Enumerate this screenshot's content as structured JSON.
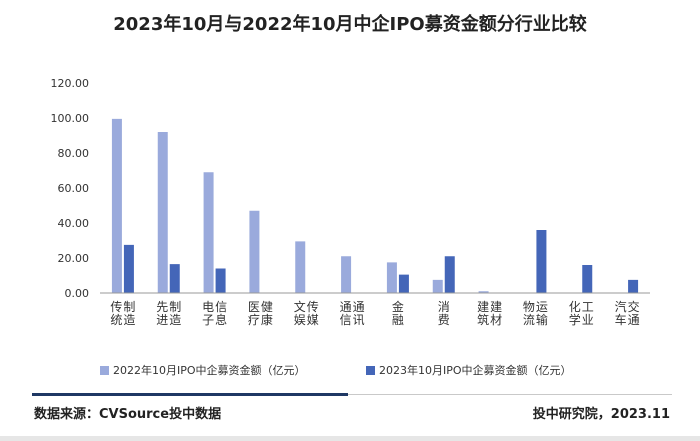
{
  "title": "2023年10月与2022年10月中企IPO募资金额分行业比较",
  "chart_data": {
    "type": "bar",
    "categories": [
      "传统制造",
      "先进制造",
      "电子信息",
      "医疗健康",
      "文娱传媒",
      "通信通讯",
      "金融",
      "消费",
      "建筑建材",
      "物流运输",
      "化学工业",
      "汽车交通"
    ],
    "series": [
      {
        "name": "2022年10月IPO中企募资金额（亿元）",
        "color": "#9aaadc",
        "values": [
          99.5,
          92.0,
          69.0,
          47.0,
          29.5,
          21.0,
          17.5,
          7.5,
          1.0,
          0,
          0,
          0
        ]
      },
      {
        "name": "2023年10月IPO中企募资金额（亿元）",
        "color": "#4466b8",
        "values": [
          27.5,
          16.5,
          14.0,
          0,
          0,
          0,
          10.5,
          21.0,
          0,
          36.0,
          16.0,
          7.5
        ]
      }
    ],
    "yticks": [
      "0.00",
      "20.00",
      "40.00",
      "60.00",
      "80.00",
      "100.00",
      "120.00"
    ],
    "ylim": [
      0,
      120
    ],
    "xlabel": "",
    "ylabel": "",
    "grid": false,
    "legend": "bottom"
  },
  "footer": {
    "source": "数据来源：CVSource投中数据",
    "credit": "投中研究院，2023.11"
  }
}
